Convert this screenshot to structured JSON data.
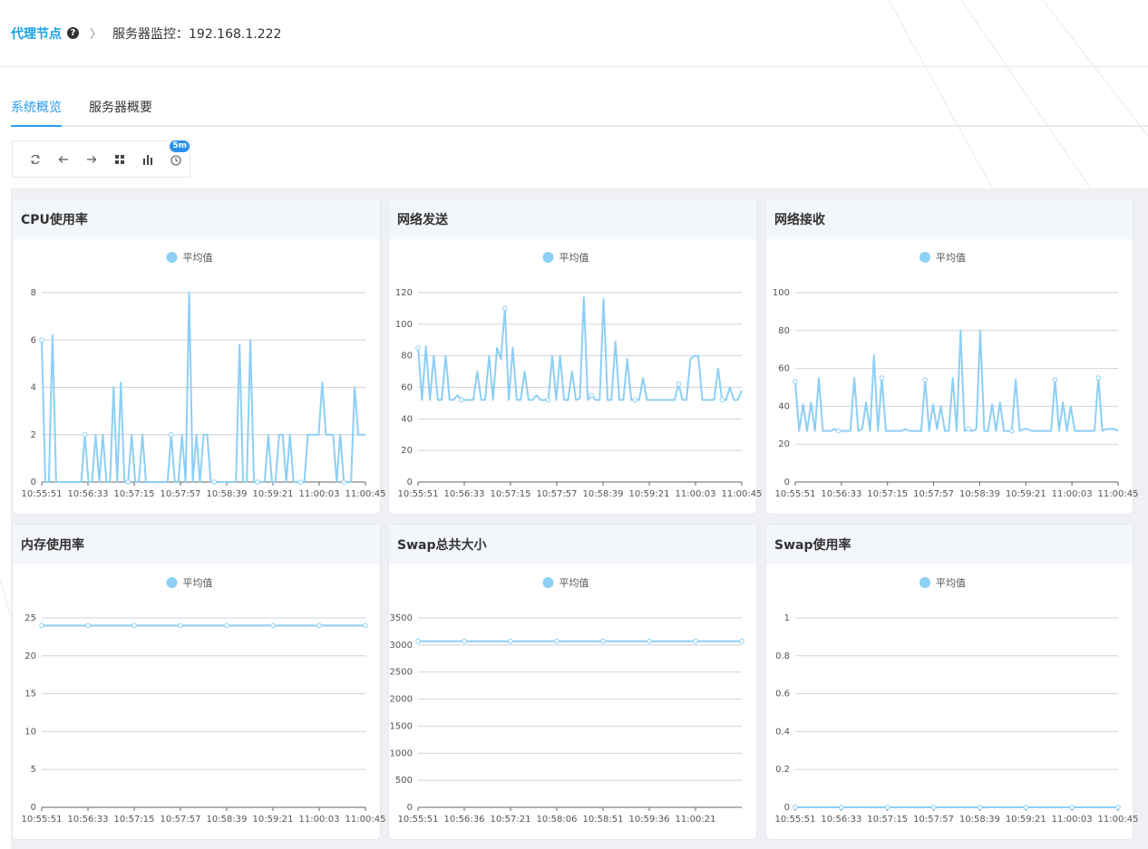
{
  "breadcrumb": {
    "root": "代理节点",
    "help": "?",
    "separator": "〉",
    "current": "服务器监控：192.168.1.222"
  },
  "tabs": [
    {
      "label": "系统概览",
      "active": true
    },
    {
      "label": "服务器概要",
      "active": false
    }
  ],
  "toolbar": {
    "icons": [
      "refresh-icon",
      "arrow-left-icon",
      "arrow-right-icon",
      "grid-icon",
      "bar-chart-icon",
      "clock-icon"
    ],
    "badge": "5m"
  },
  "colors": {
    "accent": "#2b9bf0",
    "series": "#8dcff5",
    "link": "#1aa3e8"
  },
  "chart_data": [
    {
      "title": "CPU使用率",
      "type": "line",
      "legend": "平均值",
      "x_ticks": [
        "10:55:51",
        "10:56:33",
        "10:57:15",
        "10:57:57",
        "10:58:39",
        "10:59:21",
        "11:00:03",
        "11:00:45"
      ],
      "y_ticks": [
        "0",
        "2",
        "4",
        "6",
        "8"
      ],
      "ylim": [
        0,
        8
      ],
      "series": [
        {
          "name": "平均值",
          "values": [
            6,
            0,
            0,
            6.2,
            0,
            0,
            0,
            0,
            0,
            0,
            0,
            0,
            2,
            0,
            0,
            2,
            0,
            2,
            0,
            0,
            4,
            0,
            4.2,
            0,
            0,
            2,
            0,
            0,
            2,
            0,
            0,
            0,
            0,
            0,
            0,
            0,
            2,
            0,
            0,
            2,
            0,
            8,
            0,
            2,
            0,
            2,
            2,
            0,
            0,
            0,
            0,
            0,
            0,
            0,
            0,
            5.8,
            0,
            0,
            6,
            0,
            0,
            0,
            0,
            2,
            0,
            0,
            2,
            2,
            0,
            2,
            0,
            0,
            0,
            0,
            2,
            2,
            2,
            2,
            4.2,
            2,
            2,
            2,
            0,
            2,
            0,
            0,
            0,
            4,
            2,
            2,
            2
          ]
        }
      ]
    },
    {
      "title": "网络发送",
      "type": "line",
      "legend": "平均值",
      "x_ticks": [
        "10:55:51",
        "10:56:33",
        "10:57:15",
        "10:57:57",
        "10:58:39",
        "10:59:21",
        "11:00:03",
        "11:00:45"
      ],
      "y_ticks": [
        "0",
        "20",
        "40",
        "60",
        "80",
        "100",
        "120"
      ],
      "ylim": [
        0,
        120
      ],
      "series": [
        {
          "name": "平均值",
          "values": [
            85,
            52,
            86,
            52,
            80,
            52,
            52,
            80,
            52,
            52,
            55,
            52,
            52,
            52,
            52,
            70,
            52,
            52,
            80,
            52,
            85,
            78,
            110,
            52,
            85,
            52,
            52,
            70,
            52,
            52,
            55,
            52,
            52,
            52,
            80,
            52,
            80,
            52,
            52,
            70,
            52,
            53,
            117,
            52,
            55,
            52,
            52,
            116,
            52,
            52,
            89,
            52,
            52,
            78,
            52,
            52,
            52,
            66,
            52,
            52,
            52,
            52,
            52,
            52,
            52,
            52,
            62,
            52,
            52,
            78,
            80,
            80,
            52,
            52,
            52,
            52,
            72,
            52,
            52,
            60,
            52,
            52,
            58
          ]
        }
      ]
    },
    {
      "title": "网络接收",
      "type": "line",
      "legend": "平均值",
      "x_ticks": [
        "10:55:51",
        "10:56:33",
        "10:57:15",
        "10:57:57",
        "10:58:39",
        "10:59:21",
        "11:00:03",
        "11:00:45"
      ],
      "y_ticks": [
        "0",
        "20",
        "40",
        "60",
        "80",
        "100"
      ],
      "ylim": [
        0,
        100
      ],
      "series": [
        {
          "name": "平均值",
          "values": [
            53,
            27,
            41,
            27,
            42,
            27,
            55,
            27,
            27,
            27,
            28,
            27,
            27,
            27,
            27,
            55,
            27,
            28,
            42,
            27,
            67,
            27,
            55,
            27,
            27,
            27,
            27,
            27,
            28,
            27,
            27,
            27,
            27,
            54,
            27,
            41,
            28,
            40,
            27,
            27,
            55,
            27,
            80,
            27,
            28,
            27,
            28,
            80,
            27,
            27,
            41,
            27,
            42,
            27,
            27,
            27,
            54,
            27,
            28,
            28,
            27,
            27,
            27,
            27,
            27,
            27,
            54,
            27,
            42,
            27,
            40,
            27,
            27,
            27,
            27,
            27,
            27,
            55,
            27,
            28,
            28,
            28,
            27
          ]
        }
      ]
    },
    {
      "title": "内存使用率",
      "type": "line",
      "legend": "平均值",
      "x_ticks": [
        "10:55:51",
        "10:56:33",
        "10:57:15",
        "10:57:57",
        "10:58:39",
        "10:59:21",
        "11:00:03",
        "11:00:45"
      ],
      "y_ticks": [
        "0",
        "5",
        "10",
        "15",
        "20",
        "25"
      ],
      "ylim": [
        0,
        25
      ],
      "series": [
        {
          "name": "平均值",
          "values": [
            24,
            24,
            24,
            24,
            24,
            24,
            24,
            24
          ]
        }
      ]
    },
    {
      "title": "Swap总共大小",
      "type": "line",
      "legend": "平均值",
      "x_ticks": [
        "10:55:51",
        "10:56:36",
        "10:57:21",
        "10:58:06",
        "10:58:51",
        "10:59:36",
        "11:00:21"
      ],
      "y_ticks": [
        "0",
        "500",
        "1000",
        "1500",
        "2000",
        "2500",
        "3000",
        "3500"
      ],
      "ylim": [
        0,
        3500
      ],
      "series": [
        {
          "name": "平均值",
          "values": [
            3070,
            3070,
            3070,
            3070,
            3070,
            3070,
            3070,
            3070
          ]
        }
      ]
    },
    {
      "title": "Swap使用率",
      "type": "line",
      "legend": "平均值",
      "x_ticks": [
        "10:55:51",
        "10:56:33",
        "10:57:15",
        "10:57:57",
        "10:58:39",
        "10:59:21",
        "11:00:03",
        "11:00:45"
      ],
      "y_ticks": [
        "0",
        "0.2",
        "0.4",
        "0.6",
        "0.8",
        "1"
      ],
      "ylim": [
        0,
        1
      ],
      "series": [
        {
          "name": "平均值",
          "values": [
            0,
            0,
            0,
            0,
            0,
            0,
            0,
            0
          ]
        }
      ]
    }
  ]
}
